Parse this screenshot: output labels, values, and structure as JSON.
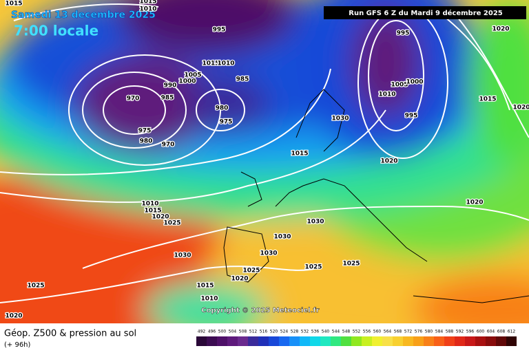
{
  "header": {
    "date": "Samedi 13 decembre 2025",
    "time": "7:00 locale",
    "run": "Run GFS 6 Z du Mardi 9 décembre 2025"
  },
  "footer": {
    "title": "Géop. Z500 & pression au sol",
    "lead": "(+ 96h)"
  },
  "copyright": "Copyright © 2025 Meteociel.fr",
  "isobar_labels": [
    1015,
    1015,
    1010,
    995,
    1015,
    1010,
    1005,
    1000,
    990,
    985,
    985,
    970,
    980,
    975,
    975,
    980,
    970,
    995,
    1005,
    1000,
    1010,
    995,
    1030,
    1015,
    1020,
    1020,
    1015,
    1020,
    1020,
    1010,
    1015,
    1020,
    1025,
    1030,
    1030,
    1030,
    1030,
    1025,
    1025,
    1025,
    1020,
    1025,
    1015,
    1010,
    1020
  ],
  "legend": {
    "values": [
      492,
      496,
      500,
      504,
      508,
      512,
      516,
      520,
      524,
      528,
      532,
      536,
      540,
      544,
      548,
      552,
      556,
      560,
      564,
      568,
      572,
      576,
      580,
      584,
      588,
      592,
      596,
      600,
      604,
      608,
      612
    ],
    "colors": [
      "#2a0838",
      "#3c0c52",
      "#4e1068",
      "#5e1a7c",
      "#6a2a8e",
      "#3a2a9a",
      "#2030b8",
      "#1848d8",
      "#1868f0",
      "#1890f8",
      "#10b8f8",
      "#10d8e8",
      "#20e8c0",
      "#30e880",
      "#50e040",
      "#90e820",
      "#c8f020",
      "#f0f030",
      "#f8e048",
      "#f8d030",
      "#f8b820",
      "#f8a018",
      "#f88018",
      "#f86018",
      "#f04018",
      "#e02818",
      "#c81818",
      "#a81010",
      "#880c0c",
      "#600808",
      "#300404"
    ]
  }
}
